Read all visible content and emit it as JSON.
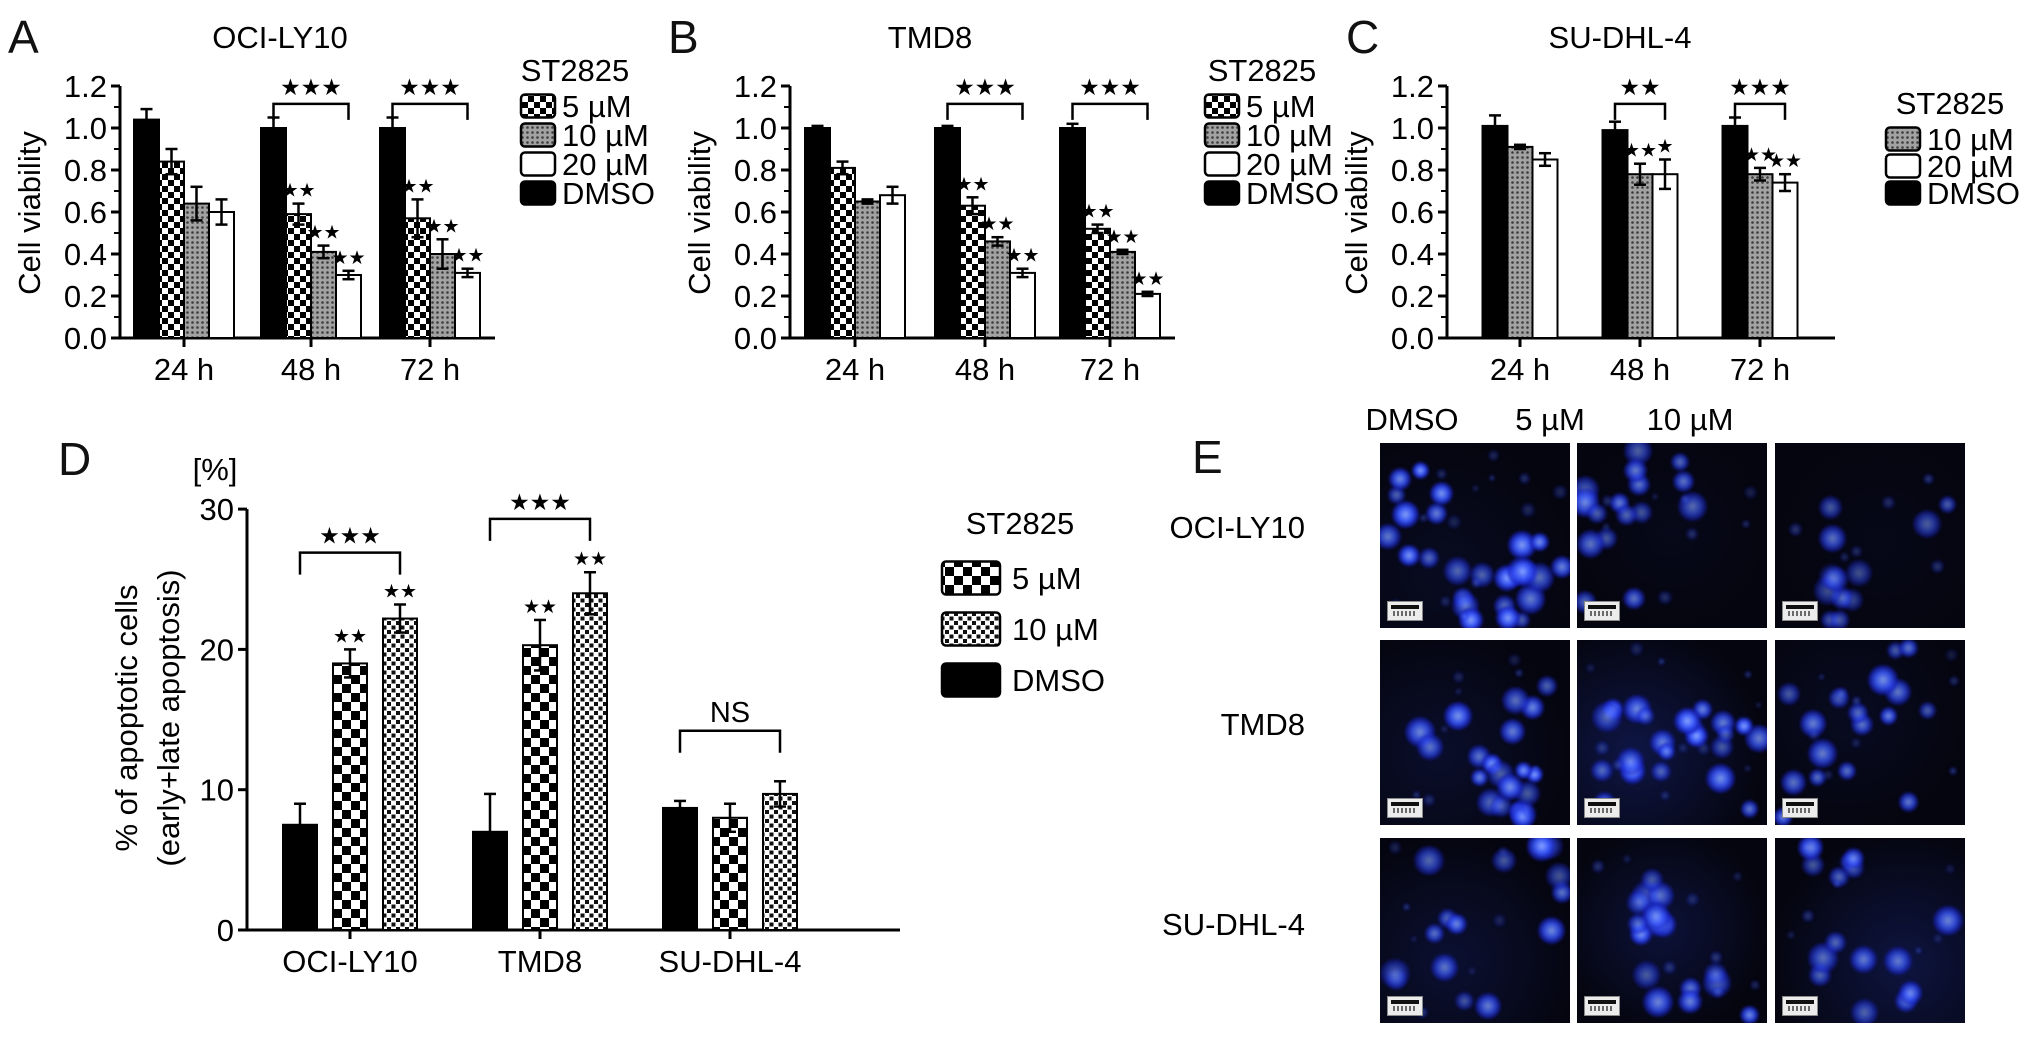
{
  "colors": {
    "background": "#ffffff",
    "bar_black": "#000000",
    "bar_gray": "#a0a0a0",
    "micrograph_bg": "#05050f",
    "micrograph_cell_blue": "#2a3df2"
  },
  "chart_data": [
    {
      "type": "bar",
      "panel_label": "A",
      "title": "OCI-LY10",
      "ylabel": "Cell viability",
      "ylim": [
        0,
        1.2
      ],
      "yticks": [
        0,
        0.2,
        0.4,
        0.6,
        0.8,
        1.0,
        1.2
      ],
      "ytick_decimals": 1,
      "categories": [
        "24 h",
        "48 h",
        "72 h"
      ],
      "series": [
        {
          "name": "DMSO",
          "pattern": "solid-black",
          "values": [
            1.04,
            1.0,
            1.0
          ],
          "errors": [
            0.05,
            0.05,
            0.05
          ],
          "sig": [
            "",
            "",
            ""
          ]
        },
        {
          "name": "5 µM",
          "pattern": "checker",
          "values": [
            0.84,
            0.59,
            0.57
          ],
          "errors": [
            0.06,
            0.05,
            0.09
          ],
          "sig": [
            "",
            "**",
            "**"
          ]
        },
        {
          "name": "10 µM",
          "pattern": "gray-dots",
          "values": [
            0.64,
            0.41,
            0.4
          ],
          "errors": [
            0.08,
            0.03,
            0.07
          ],
          "sig": [
            "",
            "**",
            "**"
          ]
        },
        {
          "name": "20 µM",
          "pattern": "white",
          "values": [
            0.6,
            0.3,
            0.31
          ],
          "errors": [
            0.06,
            0.02,
            0.02
          ],
          "sig": [
            "",
            "**",
            "**"
          ]
        }
      ],
      "brackets": [
        {
          "category": 1,
          "label": "***",
          "at": 1.115
        },
        {
          "category": 2,
          "label": "***",
          "at": 1.115
        }
      ],
      "legend": {
        "title": "ST2825",
        "entries": [
          {
            "label": "5 µM",
            "pattern": "checker"
          },
          {
            "label": "10 µM",
            "pattern": "gray-dots"
          },
          {
            "label": "20 µM",
            "pattern": "white"
          },
          {
            "label": "DMSO",
            "pattern": "solid-black"
          }
        ]
      }
    },
    {
      "type": "bar",
      "panel_label": "B",
      "title": "TMD8",
      "ylabel": "Cell viability",
      "ylim": [
        0,
        1.2
      ],
      "yticks": [
        0,
        0.2,
        0.4,
        0.6,
        0.8,
        1.0,
        1.2
      ],
      "ytick_decimals": 1,
      "categories": [
        "24 h",
        "48 h",
        "72 h"
      ],
      "series": [
        {
          "name": "DMSO",
          "pattern": "solid-black",
          "values": [
            1.0,
            1.0,
            1.0
          ],
          "errors": [
            0.01,
            0.01,
            0.02
          ],
          "sig": [
            "",
            "",
            ""
          ]
        },
        {
          "name": "5 µM",
          "pattern": "checker",
          "values": [
            0.81,
            0.63,
            0.52
          ],
          "errors": [
            0.03,
            0.04,
            0.02
          ],
          "sig": [
            "",
            "**",
            "**"
          ]
        },
        {
          "name": "10 µM",
          "pattern": "gray-dots",
          "values": [
            0.65,
            0.46,
            0.41
          ],
          "errors": [
            0.01,
            0.02,
            0.01
          ],
          "sig": [
            "",
            "**",
            "**"
          ]
        },
        {
          "name": "20 µM",
          "pattern": "white",
          "values": [
            0.68,
            0.31,
            0.21
          ],
          "errors": [
            0.04,
            0.02,
            0.01
          ],
          "sig": [
            "",
            "**",
            "**"
          ]
        }
      ],
      "brackets": [
        {
          "category": 1,
          "label": "***",
          "at": 1.115
        },
        {
          "category": 2,
          "label": "***",
          "at": 1.115
        }
      ],
      "legend": {
        "title": "ST2825",
        "entries": [
          {
            "label": "5 µM",
            "pattern": "checker"
          },
          {
            "label": "10 µM",
            "pattern": "gray-dots"
          },
          {
            "label": "20 µM",
            "pattern": "white"
          },
          {
            "label": "DMSO",
            "pattern": "solid-black"
          }
        ]
      }
    },
    {
      "type": "bar",
      "panel_label": "C",
      "title": "SU-DHL-4",
      "ylabel": "Cell viability",
      "ylim": [
        0,
        1.2
      ],
      "yticks": [
        0,
        0.2,
        0.4,
        0.6,
        0.8,
        1.0,
        1.2
      ],
      "ytick_decimals": 1,
      "categories": [
        "24 h",
        "48 h",
        "72 h"
      ],
      "series": [
        {
          "name": "DMSO",
          "pattern": "solid-black",
          "values": [
            1.01,
            0.99,
            1.01
          ],
          "errors": [
            0.05,
            0.04,
            0.04
          ],
          "sig": [
            "",
            "",
            ""
          ]
        },
        {
          "name": "10 µM",
          "pattern": "gray-dots",
          "values": [
            0.91,
            0.78,
            0.78
          ],
          "errors": [
            0.01,
            0.05,
            0.03
          ],
          "sig": [
            "",
            "**",
            "**"
          ]
        },
        {
          "name": "20 µM",
          "pattern": "white",
          "values": [
            0.85,
            0.78,
            0.74
          ],
          "errors": [
            0.03,
            0.07,
            0.04
          ],
          "sig": [
            "",
            "*",
            "**"
          ]
        }
      ],
      "brackets": [
        {
          "category": 1,
          "label": "**",
          "at": 1.115
        },
        {
          "category": 2,
          "label": "***",
          "at": 1.115
        }
      ],
      "legend": {
        "title": "ST2825",
        "entries": [
          {
            "label": "10 µM",
            "pattern": "gray-dots"
          },
          {
            "label": "20 µM",
            "pattern": "white"
          },
          {
            "label": "DMSO",
            "pattern": "solid-black"
          }
        ]
      }
    },
    {
      "type": "bar",
      "panel_label": "D",
      "unit_label": "[%]",
      "ylabel_lines": [
        "% of apoptotic cells",
        "(early+late apoptosis)"
      ],
      "ylim": [
        0,
        30
      ],
      "yticks": [
        0,
        10,
        20,
        30
      ],
      "ytick_decimals": 0,
      "categories": [
        "OCI-LY10",
        "TMD8",
        "SU-DHL-4"
      ],
      "series": [
        {
          "name": "DMSO",
          "pattern": "solid-black",
          "values": [
            7.5,
            7.0,
            8.7
          ],
          "errors": [
            1.5,
            2.7,
            0.5
          ],
          "sig": [
            "",
            "",
            ""
          ]
        },
        {
          "name": "5 µM",
          "pattern": "checker-coarse",
          "values": [
            19.0,
            20.3,
            8.0
          ],
          "errors": [
            1.0,
            1.8,
            1.0
          ],
          "sig": [
            "**",
            "**",
            ""
          ]
        },
        {
          "name": "10 µM",
          "pattern": "checker-fine",
          "values": [
            22.2,
            24.0,
            9.7
          ],
          "errors": [
            1.0,
            1.5,
            0.9
          ],
          "sig": [
            "**",
            "**",
            ""
          ]
        }
      ],
      "brackets": [
        {
          "category": 0,
          "label": "***",
          "at": 26.9
        },
        {
          "category": 1,
          "label": "***",
          "at": 29.3
        },
        {
          "category": 2,
          "label": "NS",
          "at": 14.2
        }
      ],
      "legend": {
        "title": "ST2825",
        "entries": [
          {
            "label": "5 µM",
            "pattern": "checker-coarse"
          },
          {
            "label": "10 µM",
            "pattern": "checker-fine"
          },
          {
            "label": "DMSO",
            "pattern": "solid-black"
          }
        ]
      }
    }
  ],
  "panel_e": {
    "label": "E",
    "col_headers": [
      "DMSO",
      "5 µM",
      "10 µM"
    ],
    "row_labels": [
      "OCI-LY10",
      "TMD8",
      "SU-DHL-4"
    ],
    "stain": "blue nuclear fluorescence",
    "scale_bar": true,
    "tiles": [
      {
        "row": "OCI-LY10",
        "col": "DMSO",
        "cell_count": 26,
        "brightness": 1.0,
        "haze": 0.1
      },
      {
        "row": "OCI-LY10",
        "col": "5 µM",
        "cell_count": 16,
        "brightness": 0.9,
        "haze": 0.06
      },
      {
        "row": "OCI-LY10",
        "col": "10 µM",
        "cell_count": 12,
        "brightness": 0.75,
        "haze": 0.05
      },
      {
        "row": "TMD8",
        "col": "DMSO",
        "cell_count": 20,
        "brightness": 1.0,
        "haze": 0.16
      },
      {
        "row": "TMD8",
        "col": "5 µM",
        "cell_count": 22,
        "brightness": 1.0,
        "haze": 0.3
      },
      {
        "row": "TMD8",
        "col": "10 µM",
        "cell_count": 18,
        "brightness": 0.9,
        "haze": 0.1
      },
      {
        "row": "SU-DHL-4",
        "col": "DMSO",
        "cell_count": 16,
        "brightness": 0.9,
        "haze": 0.2
      },
      {
        "row": "SU-DHL-4",
        "col": "5 µM",
        "cell_count": 16,
        "brightness": 0.95,
        "haze": 0.24
      },
      {
        "row": "SU-DHL-4",
        "col": "10 µM",
        "cell_count": 15,
        "brightness": 1.0,
        "haze": 0.28
      }
    ]
  }
}
